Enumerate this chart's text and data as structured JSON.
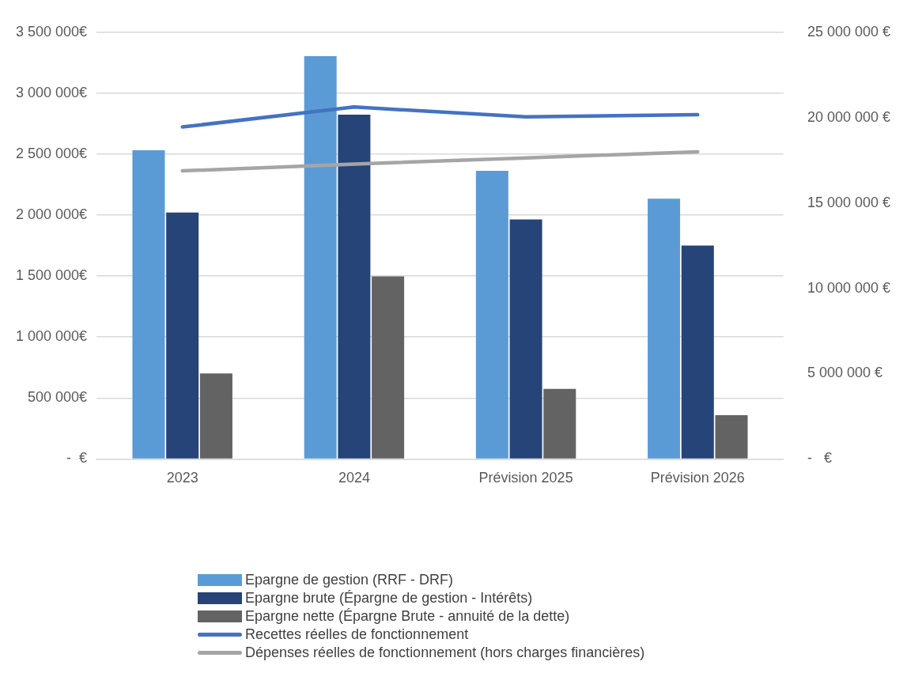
{
  "chart_data": {
    "type": "bar",
    "categories": [
      "2023",
      "2024",
      "Prévision 2025",
      "Prévision 2026"
    ],
    "series": [
      {
        "name": "Epargne de gestion (RRF - DRF)",
        "color": "#5b9bd5",
        "values": [
          2533000,
          3304000,
          2363000,
          2135000
        ]
      },
      {
        "name": "Epargne brute (Épargne de gestion - Intérêts)",
        "color": "#264478",
        "values": [
          2022000,
          2824000,
          1965000,
          1750000
        ]
      },
      {
        "name": "Epargne nette (Épargne Brute - annuité de la dette)",
        "color": "#636363",
        "values": [
          701000,
          1497000,
          575000,
          360000
        ]
      },
      {
        "name": "Recettes réelles de fonctionnement",
        "type": "line",
        "axis": "y2",
        "color": "#4472c4",
        "values": [
          19450000,
          20620000,
          20040000,
          20170000
        ]
      },
      {
        "name": "Dépenses réelles de fonctionnement (hors charges financières)",
        "type": "line",
        "axis": "y2",
        "color": "#a5a5a5",
        "values": [
          16880000,
          17280000,
          17640000,
          18000000
        ]
      }
    ],
    "ylim": [
      0,
      3500000
    ],
    "yticks": [
      {
        "value": 0,
        "label": "-  €"
      },
      {
        "value": 500000,
        "label": "500 000€"
      },
      {
        "value": 1000000,
        "label": "1 000 000€"
      },
      {
        "value": 1500000,
        "label": "1 500 000€"
      },
      {
        "value": 2000000,
        "label": "2 000 000€"
      },
      {
        "value": 2500000,
        "label": "2 500 000€"
      },
      {
        "value": 3000000,
        "label": "3 000 000€"
      },
      {
        "value": 3500000,
        "label": "3 500 000€"
      }
    ],
    "y2lim": [
      0,
      25000000
    ],
    "y2ticks": [
      {
        "value": 0,
        "label": "-   €"
      },
      {
        "value": 5000000,
        "label": "5 000 000 €"
      },
      {
        "value": 10000000,
        "label": "10 000 000 €"
      },
      {
        "value": 15000000,
        "label": "15 000 000 €"
      },
      {
        "value": 20000000,
        "label": "20 000 000 €"
      },
      {
        "value": 25000000,
        "label": "25 000 000 €"
      }
    ],
    "grid": "y",
    "legend": "bottom",
    "marker": "none",
    "line_style": "solid"
  }
}
